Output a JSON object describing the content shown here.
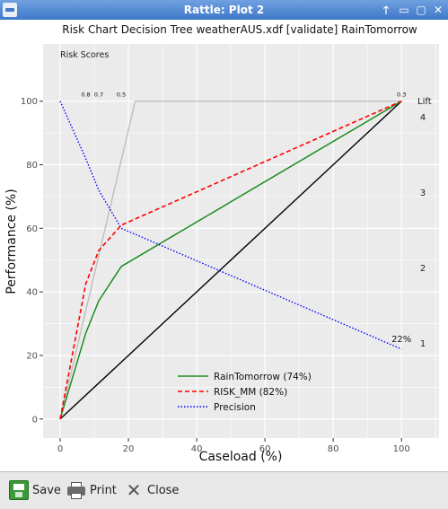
{
  "window": {
    "title": "Rattle: Plot 2",
    "controls": {
      "up": "🡑",
      "minimize": "▭",
      "maximize": "▢",
      "close": "✕"
    }
  },
  "toolbar": {
    "save_label": "Save",
    "print_label": "Print",
    "close_label": "Close"
  },
  "chart_data": {
    "type": "line",
    "title": "Risk Chart Decision Tree weatherAUS.xdf [validate] RainTomorrow",
    "xlabel": "Caseload (%)",
    "ylabel": "Performance (%)",
    "xlim": [
      -5,
      111
    ],
    "ylim": [
      -6,
      118
    ],
    "xticks": [
      0,
      20,
      40,
      60,
      80,
      100
    ],
    "yticks": [
      0,
      20,
      40,
      60,
      80,
      100
    ],
    "grid": true,
    "legend_position": "bottom-center",
    "colors": {
      "panel_bg": "#ebebeb",
      "grid": "#ffffff",
      "raintomorrow": "#1e8c1e",
      "risk_mm": "#ff0000",
      "precision": "#0000ff",
      "baseline": "#000000",
      "optimal": "#bebebe"
    },
    "series": [
      {
        "name": "RainTomorrow (74%)",
        "style": "solid",
        "x": [
          0,
          7.5,
          11.3,
          17.9,
          100
        ],
        "y": [
          0,
          27,
          37.2,
          48,
          100
        ]
      },
      {
        "name": "RISK_MM (82%)",
        "style": "dashed",
        "x": [
          0,
          7.5,
          11.3,
          17.9,
          100
        ],
        "y": [
          0,
          42.5,
          53,
          61,
          100
        ]
      },
      {
        "name": "Precision",
        "style": "dotted",
        "x": [
          0,
          7.5,
          11.3,
          17.9,
          100
        ],
        "y": [
          100,
          82,
          72,
          60,
          22
        ]
      }
    ],
    "baseline": {
      "x": [
        0,
        100
      ],
      "y": [
        0,
        100
      ]
    },
    "optimal": {
      "x": [
        0,
        22,
        100
      ],
      "y": [
        0,
        100,
        100
      ]
    },
    "risk_scores": {
      "label": "Risk Scores",
      "items": [
        {
          "text": "0.8",
          "x": 7.5
        },
        {
          "text": "0.7",
          "x": 11.3
        },
        {
          "text": "0.5",
          "x": 17.9
        },
        {
          "text": "0.3",
          "x": 100
        }
      ]
    },
    "lift": {
      "label": "Lift",
      "ticks": [
        1,
        2,
        3,
        4
      ]
    },
    "annotation": {
      "text": "22%",
      "x": 100,
      "y": 22
    }
  }
}
